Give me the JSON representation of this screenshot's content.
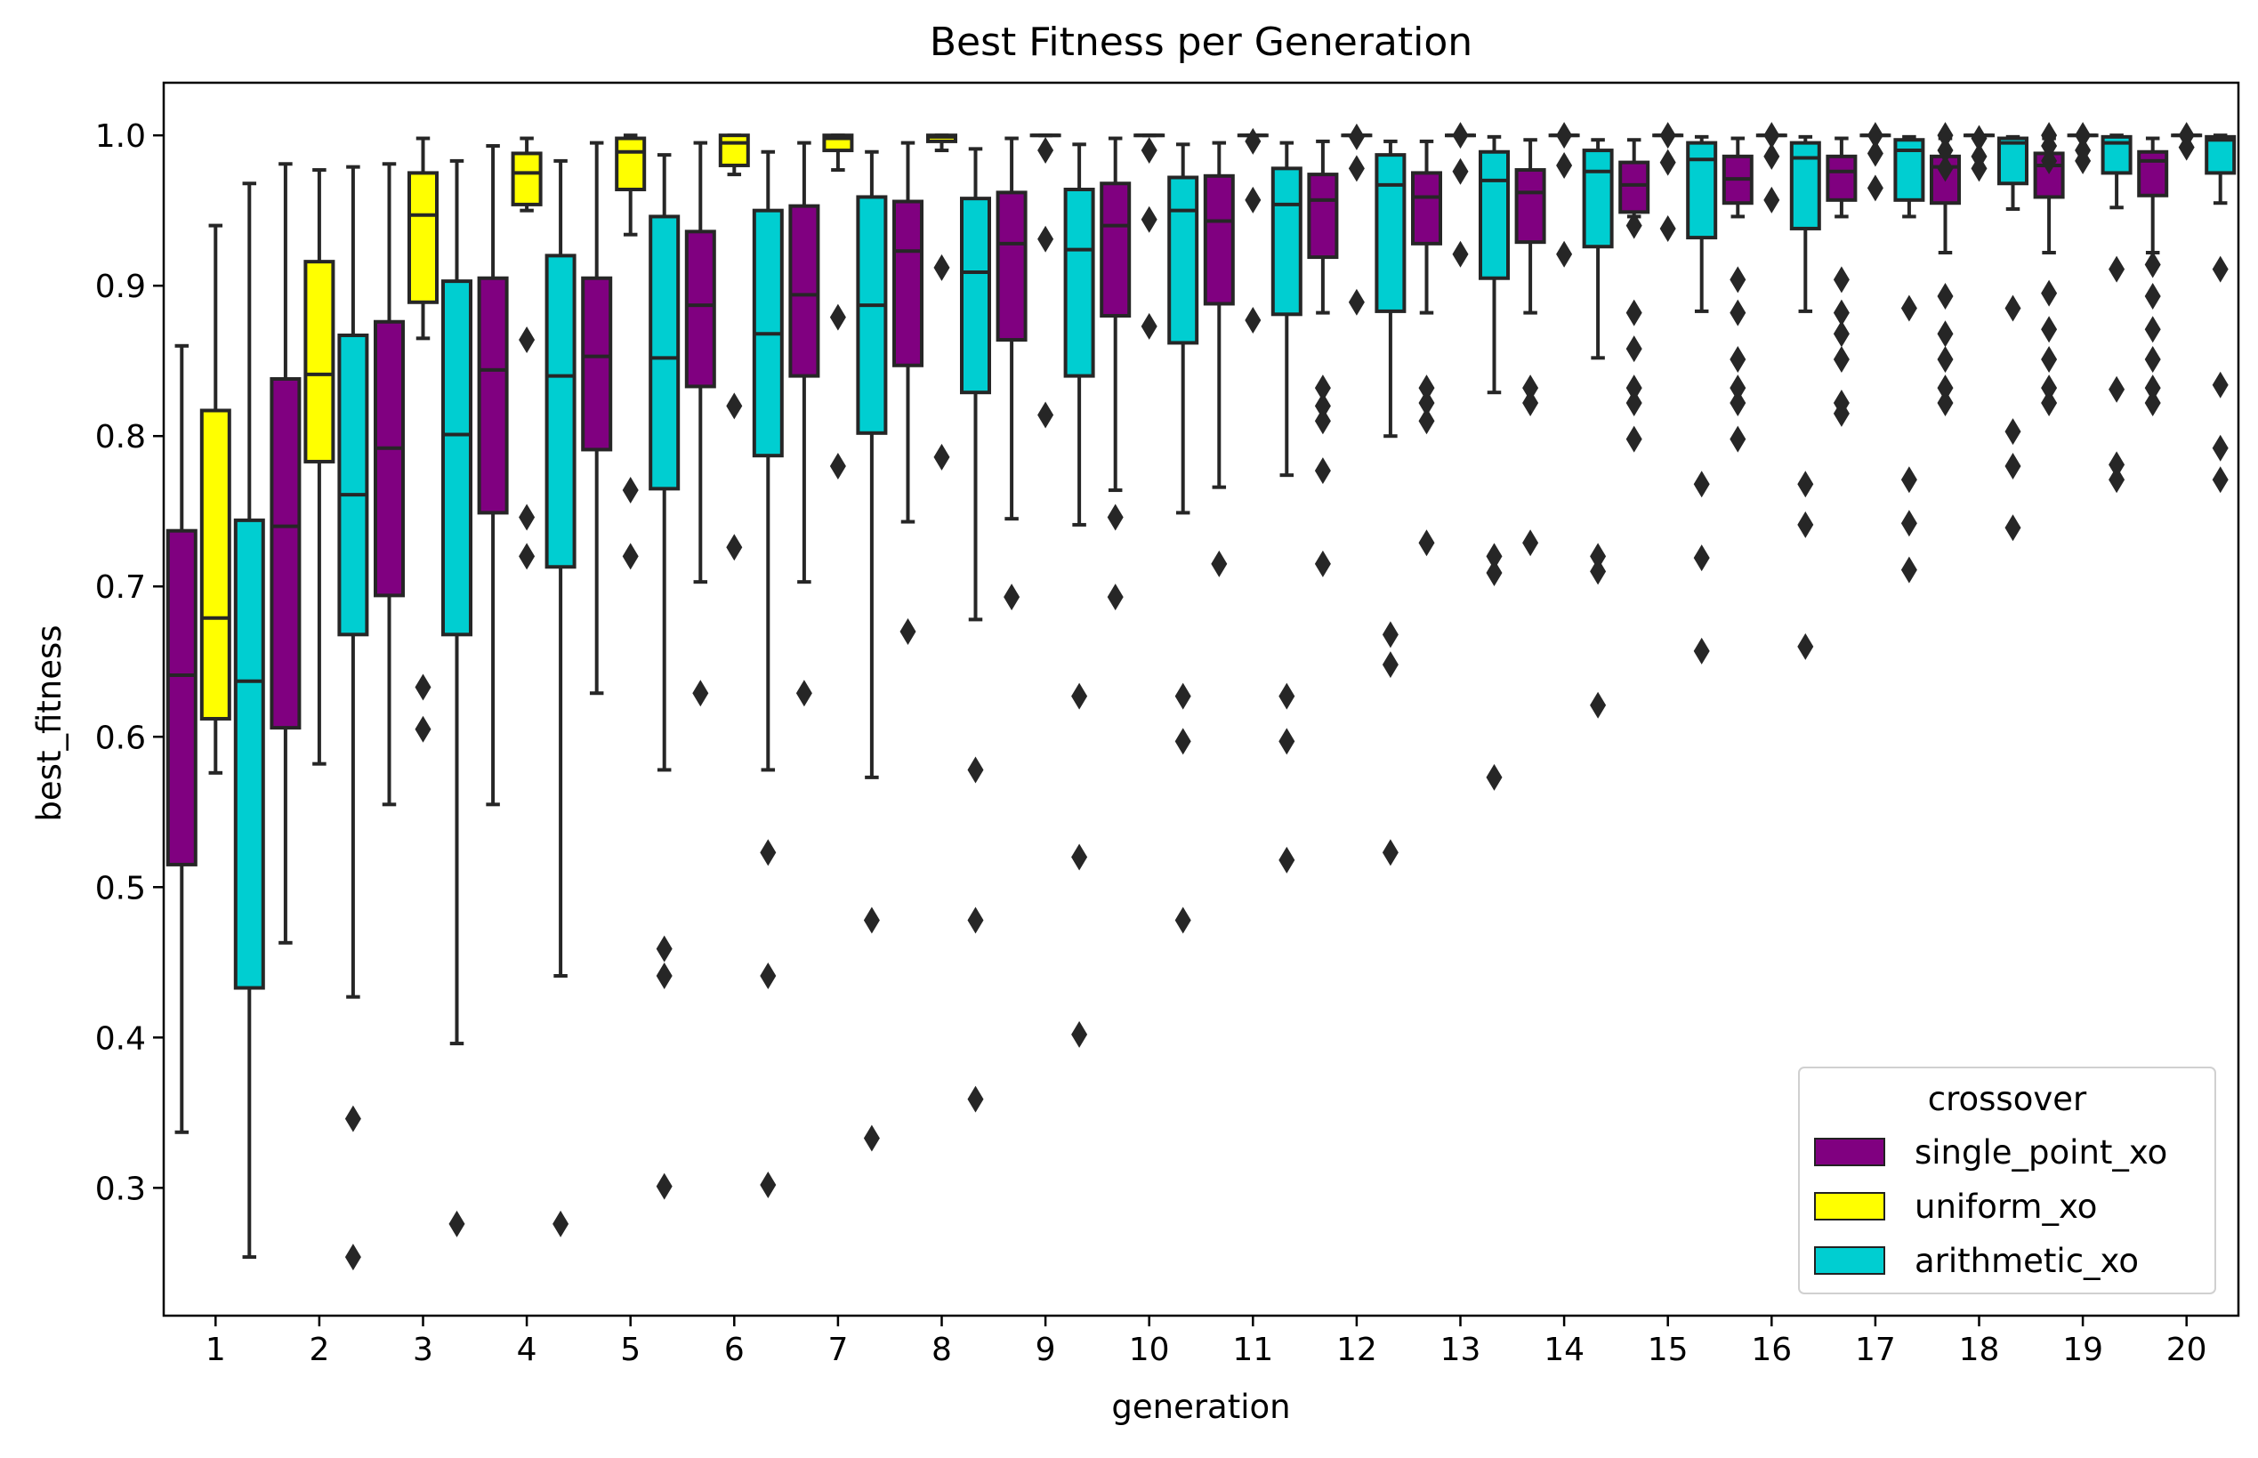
{
  "chart_data": {
    "type": "boxplot",
    "title": "Best Fitness per Generation",
    "xlabel": "generation",
    "ylabel": "best_fitness",
    "ylim": [
      0.215,
      1.035
    ],
    "yticks": [
      "0.3",
      "0.4",
      "0.5",
      "0.6",
      "0.7",
      "0.8",
      "0.9",
      "1.0"
    ],
    "grid": false,
    "categories": [
      "1",
      "2",
      "3",
      "4",
      "5",
      "6",
      "7",
      "8",
      "9",
      "10",
      "11",
      "12",
      "13",
      "14",
      "15",
      "16",
      "17",
      "18",
      "19",
      "20"
    ],
    "legend": {
      "title": "crossover",
      "position": "lower right",
      "items": [
        "single_point_xo",
        "uniform_xo",
        "arithmetic_xo"
      ]
    },
    "series": [
      {
        "name": "single_point_xo",
        "color": "#800080",
        "boxes": [
          {
            "whislo": 0.337,
            "q1": 0.515,
            "med": 0.641,
            "q3": 0.737,
            "whishi": 0.86,
            "fliers": []
          },
          {
            "whislo": 0.463,
            "q1": 0.606,
            "med": 0.74,
            "q3": 0.838,
            "whishi": 0.981,
            "fliers": []
          },
          {
            "whislo": 0.555,
            "q1": 0.694,
            "med": 0.792,
            "q3": 0.876,
            "whishi": 0.981,
            "fliers": []
          },
          {
            "whislo": 0.555,
            "q1": 0.749,
            "med": 0.844,
            "q3": 0.905,
            "whishi": 0.993,
            "fliers": []
          },
          {
            "whislo": 0.629,
            "q1": 0.791,
            "med": 0.853,
            "q3": 0.905,
            "whishi": 0.995,
            "fliers": []
          },
          {
            "whislo": 0.703,
            "q1": 0.833,
            "med": 0.887,
            "q3": 0.936,
            "whishi": 0.995,
            "fliers": [
              0.629
            ]
          },
          {
            "whislo": 0.703,
            "q1": 0.84,
            "med": 0.894,
            "q3": 0.953,
            "whishi": 0.995,
            "fliers": [
              0.629
            ]
          },
          {
            "whislo": 0.743,
            "q1": 0.847,
            "med": 0.923,
            "q3": 0.956,
            "whishi": 0.995,
            "fliers": [
              0.67
            ]
          },
          {
            "whislo": 0.745,
            "q1": 0.864,
            "med": 0.928,
            "q3": 0.962,
            "whishi": 0.998,
            "fliers": [
              0.693
            ]
          },
          {
            "whislo": 0.764,
            "q1": 0.88,
            "med": 0.94,
            "q3": 0.968,
            "whishi": 0.998,
            "fliers": [
              0.746,
              0.693
            ]
          },
          {
            "whislo": 0.766,
            "q1": 0.888,
            "med": 0.943,
            "q3": 0.973,
            "whishi": 0.995,
            "fliers": [
              0.715
            ]
          },
          {
            "whislo": 0.882,
            "q1": 0.919,
            "med": 0.957,
            "q3": 0.974,
            "whishi": 0.996,
            "fliers": [
              0.832,
              0.82,
              0.81,
              0.777,
              0.715
            ]
          },
          {
            "whislo": 0.882,
            "q1": 0.928,
            "med": 0.959,
            "q3": 0.975,
            "whishi": 0.996,
            "fliers": [
              0.832,
              0.822,
              0.81,
              0.729
            ]
          },
          {
            "whislo": 0.882,
            "q1": 0.929,
            "med": 0.962,
            "q3": 0.977,
            "whishi": 0.997,
            "fliers": [
              0.832,
              0.822,
              0.729
            ]
          },
          {
            "whislo": 0.946,
            "q1": 0.949,
            "med": 0.967,
            "q3": 0.982,
            "whishi": 0.997,
            "fliers": [
              0.94,
              0.882,
              0.858,
              0.832,
              0.822,
              0.798
            ]
          },
          {
            "whislo": 0.946,
            "q1": 0.955,
            "med": 0.971,
            "q3": 0.986,
            "whishi": 0.998,
            "fliers": [
              0.904,
              0.882,
              0.851,
              0.832,
              0.822,
              0.798
            ]
          },
          {
            "whislo": 0.946,
            "q1": 0.957,
            "med": 0.976,
            "q3": 0.986,
            "whishi": 0.998,
            "fliers": [
              0.904,
              0.882,
              0.868,
              0.851,
              0.822,
              0.815
            ]
          },
          {
            "whislo": 0.922,
            "q1": 0.955,
            "med": 0.979,
            "q3": 0.986,
            "whishi": 0.998,
            "fliers": [
              1.0,
              0.99,
              0.978,
              0.893,
              0.868,
              0.851,
              0.832,
              0.822
            ]
          },
          {
            "whislo": 0.922,
            "q1": 0.959,
            "med": 0.98,
            "q3": 0.988,
            "whishi": 0.998,
            "fliers": [
              1.0,
              0.993,
              0.983,
              0.895,
              0.871,
              0.851,
              0.832,
              0.822
            ]
          },
          {
            "whislo": 0.922,
            "q1": 0.96,
            "med": 0.983,
            "q3": 0.989,
            "whishi": 0.998,
            "fliers": [
              0.914,
              0.893,
              0.871,
              0.851,
              0.832,
              0.822
            ]
          }
        ]
      },
      {
        "name": "uniform_xo",
        "color": "#FFFF00",
        "boxes": [
          {
            "whislo": 0.576,
            "q1": 0.612,
            "med": 0.679,
            "q3": 0.817,
            "whishi": 0.94,
            "fliers": []
          },
          {
            "whislo": 0.582,
            "q1": 0.783,
            "med": 0.841,
            "q3": 0.916,
            "whishi": 0.977,
            "fliers": []
          },
          {
            "whislo": 0.865,
            "q1": 0.889,
            "med": 0.947,
            "q3": 0.975,
            "whishi": 0.998,
            "fliers": [
              0.633,
              0.605
            ]
          },
          {
            "whislo": 0.95,
            "q1": 0.954,
            "med": 0.975,
            "q3": 0.988,
            "whishi": 0.998,
            "fliers": [
              0.864,
              0.746,
              0.72
            ]
          },
          {
            "whislo": 0.934,
            "q1": 0.964,
            "med": 0.989,
            "q3": 0.998,
            "whishi": 1.0,
            "fliers": [
              0.764,
              0.72
            ]
          },
          {
            "whislo": 0.974,
            "q1": 0.98,
            "med": 0.995,
            "q3": 1.0,
            "whishi": 1.0,
            "fliers": [
              0.82,
              0.726
            ]
          },
          {
            "whislo": 0.977,
            "q1": 0.99,
            "med": 0.998,
            "q3": 1.0,
            "whishi": 1.0,
            "fliers": [
              0.879,
              0.78
            ]
          },
          {
            "whislo": 0.99,
            "q1": 0.996,
            "med": 0.999,
            "q3": 1.0,
            "whishi": 1.0,
            "fliers": [
              0.912,
              0.786
            ]
          },
          {
            "whislo": 1.0,
            "q1": 1.0,
            "med": 1.0,
            "q3": 1.0,
            "whishi": 1.0,
            "fliers": [
              0.99,
              0.931,
              0.814
            ]
          },
          {
            "whislo": 1.0,
            "q1": 1.0,
            "med": 1.0,
            "q3": 1.0,
            "whishi": 1.0,
            "fliers": [
              0.99,
              0.944,
              0.873
            ]
          },
          {
            "whislo": 1.0,
            "q1": 1.0,
            "med": 1.0,
            "q3": 1.0,
            "whishi": 1.0,
            "fliers": [
              0.996,
              0.957,
              0.877
            ]
          },
          {
            "whislo": 1.0,
            "q1": 1.0,
            "med": 1.0,
            "q3": 1.0,
            "whishi": 1.0,
            "fliers": [
              0.999,
              0.978,
              0.889
            ]
          },
          {
            "whislo": 1.0,
            "q1": 1.0,
            "med": 1.0,
            "q3": 1.0,
            "whishi": 1.0,
            "fliers": [
              1.0,
              0.976,
              0.921
            ]
          },
          {
            "whislo": 1.0,
            "q1": 1.0,
            "med": 1.0,
            "q3": 1.0,
            "whishi": 1.0,
            "fliers": [
              1.0,
              0.98,
              0.921
            ]
          },
          {
            "whislo": 1.0,
            "q1": 1.0,
            "med": 1.0,
            "q3": 1.0,
            "whishi": 1.0,
            "fliers": [
              1.0,
              0.982,
              0.938
            ]
          },
          {
            "whislo": 1.0,
            "q1": 1.0,
            "med": 1.0,
            "q3": 1.0,
            "whishi": 1.0,
            "fliers": [
              1.0,
              0.986,
              0.957
            ]
          },
          {
            "whislo": 1.0,
            "q1": 1.0,
            "med": 1.0,
            "q3": 1.0,
            "whishi": 1.0,
            "fliers": [
              1.0,
              0.988,
              0.965
            ]
          },
          {
            "whislo": 1.0,
            "q1": 1.0,
            "med": 1.0,
            "q3": 1.0,
            "whishi": 1.0,
            "fliers": [
              0.998,
              0.986,
              0.978
            ]
          },
          {
            "whislo": 1.0,
            "q1": 1.0,
            "med": 1.0,
            "q3": 1.0,
            "whishi": 1.0,
            "fliers": [
              1.0,
              0.99,
              0.983
            ]
          },
          {
            "whislo": 1.0,
            "q1": 1.0,
            "med": 1.0,
            "q3": 1.0,
            "whishi": 1.0,
            "fliers": [
              1.0,
              0.992
            ]
          }
        ]
      },
      {
        "name": "arithmetic_xo",
        "color": "#00CED1",
        "boxes": [
          {
            "whislo": 0.254,
            "q1": 0.433,
            "med": 0.637,
            "q3": 0.744,
            "whishi": 0.968,
            "fliers": []
          },
          {
            "whislo": 0.427,
            "q1": 0.668,
            "med": 0.761,
            "q3": 0.867,
            "whishi": 0.979,
            "fliers": [
              0.346,
              0.254
            ]
          },
          {
            "whislo": 0.396,
            "q1": 0.668,
            "med": 0.801,
            "q3": 0.903,
            "whishi": 0.983,
            "fliers": [
              0.276
            ]
          },
          {
            "whislo": 0.441,
            "q1": 0.713,
            "med": 0.84,
            "q3": 0.92,
            "whishi": 0.983,
            "fliers": [
              0.276
            ]
          },
          {
            "whislo": 0.578,
            "q1": 0.765,
            "med": 0.852,
            "q3": 0.946,
            "whishi": 0.987,
            "fliers": [
              0.459,
              0.441,
              0.301
            ]
          },
          {
            "whislo": 0.578,
            "q1": 0.787,
            "med": 0.868,
            "q3": 0.95,
            "whishi": 0.989,
            "fliers": [
              0.523,
              0.441,
              0.302
            ]
          },
          {
            "whislo": 0.573,
            "q1": 0.802,
            "med": 0.887,
            "q3": 0.959,
            "whishi": 0.989,
            "fliers": [
              0.478,
              0.333
            ]
          },
          {
            "whislo": 0.678,
            "q1": 0.829,
            "med": 0.909,
            "q3": 0.958,
            "whishi": 0.991,
            "fliers": [
              0.578,
              0.478,
              0.359
            ]
          },
          {
            "whislo": 0.741,
            "q1": 0.84,
            "med": 0.924,
            "q3": 0.964,
            "whishi": 0.994,
            "fliers": [
              0.627,
              0.52,
              0.402
            ]
          },
          {
            "whislo": 0.749,
            "q1": 0.862,
            "med": 0.95,
            "q3": 0.972,
            "whishi": 0.994,
            "fliers": [
              0.627,
              0.597,
              0.478
            ]
          },
          {
            "whislo": 0.774,
            "q1": 0.881,
            "med": 0.954,
            "q3": 0.978,
            "whishi": 0.995,
            "fliers": [
              0.627,
              0.597,
              0.518
            ]
          },
          {
            "whislo": 0.8,
            "q1": 0.883,
            "med": 0.967,
            "q3": 0.987,
            "whishi": 0.996,
            "fliers": [
              0.668,
              0.648,
              0.523
            ]
          },
          {
            "whislo": 0.829,
            "q1": 0.905,
            "med": 0.97,
            "q3": 0.989,
            "whishi": 0.999,
            "fliers": [
              0.72,
              0.709,
              0.573
            ]
          },
          {
            "whislo": 0.852,
            "q1": 0.926,
            "med": 0.976,
            "q3": 0.99,
            "whishi": 0.997,
            "fliers": [
              0.72,
              0.71,
              0.621
            ]
          },
          {
            "whislo": 0.883,
            "q1": 0.932,
            "med": 0.984,
            "q3": 0.995,
            "whishi": 0.999,
            "fliers": [
              0.768,
              0.719,
              0.657
            ]
          },
          {
            "whislo": 0.883,
            "q1": 0.938,
            "med": 0.985,
            "q3": 0.995,
            "whishi": 0.999,
            "fliers": [
              0.768,
              0.741,
              0.66
            ]
          },
          {
            "whislo": 0.946,
            "q1": 0.957,
            "med": 0.99,
            "q3": 0.997,
            "whishi": 0.999,
            "fliers": [
              0.885,
              0.771,
              0.742,
              0.711
            ]
          },
          {
            "whislo": 0.951,
            "q1": 0.968,
            "med": 0.995,
            "q3": 0.998,
            "whishi": 0.999,
            "fliers": [
              0.885,
              0.803,
              0.78,
              0.739
            ]
          },
          {
            "whislo": 0.952,
            "q1": 0.975,
            "med": 0.995,
            "q3": 0.999,
            "whishi": 1.0,
            "fliers": [
              0.911,
              0.831,
              0.781,
              0.771
            ]
          },
          {
            "whislo": 0.955,
            "q1": 0.975,
            "med": 0.997,
            "q3": 0.999,
            "whishi": 1.0,
            "fliers": [
              0.911,
              0.834,
              0.792,
              0.771
            ]
          }
        ]
      }
    ]
  }
}
